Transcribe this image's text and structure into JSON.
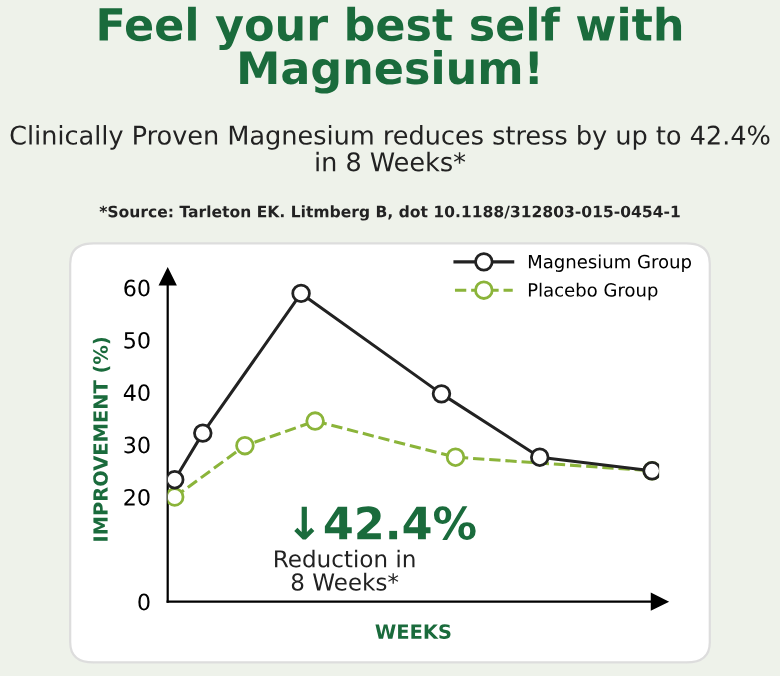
{
  "chart_data": {
    "type": "line",
    "title": "Feel your best self with Magnesium!",
    "subtitle": "Clinically Proven Magnesium reduces stress by up to 42.4% in 8 Weeks*",
    "xlabel": "WEEKS",
    "ylabel": "IMPROVEMENT (%)",
    "categories": [
      null,
      null,
      null,
      null,
      null,
      null,
      null,
      null,
      null,
      null,
      null,
      null,
      null,
      null,
      null,
      null,
      null,
      null,
      null,
      null,
      null,
      null,
      null,
      null,
      null,
      null,
      null,
      null,
      null,
      null,
      null,
      null,
      null,
      null,
      null
    ],
    "series": [
      {
        "name": "Magnesium Group",
        "color": "#222222",
        "line_style": "solid",
        "values": [
          23.3,
          null,
          32.2,
          null,
          null,
          null,
          null,
          null,
          null,
          58.9,
          null,
          null,
          null,
          null,
          null,
          null,
          null,
          null,
          null,
          39.7,
          null,
          null,
          null,
          null,
          null,
          null,
          27.6,
          null,
          null,
          null,
          null,
          null,
          null,
          null,
          25
        ]
      },
      {
        "name": "Placebo Group",
        "color": "#8bb43a",
        "line_style": "dashed",
        "values": [
          20,
          null,
          null,
          null,
          null,
          29.8,
          null,
          null,
          null,
          null,
          34.5,
          null,
          null,
          null,
          null,
          null,
          null,
          null,
          null,
          null,
          27.6,
          null,
          null,
          null,
          null,
          null,
          null,
          null,
          null,
          null,
          null,
          null,
          null,
          null,
          25
        ]
      }
    ],
    "marker": "circle",
    "ylim": [
      0,
      62
    ],
    "yticks": [
      0,
      20,
      30,
      40,
      50,
      60
    ],
    "tick_labels": "y",
    "grid": false,
    "legend": "top right",
    "annotations": [
      "*Source: Tarleton EK. Litmberg B, dot 10.1188/312803-015-0454-1",
      "↓42.4%",
      "Reduction in\n8 Weeks*"
    ]
  }
}
